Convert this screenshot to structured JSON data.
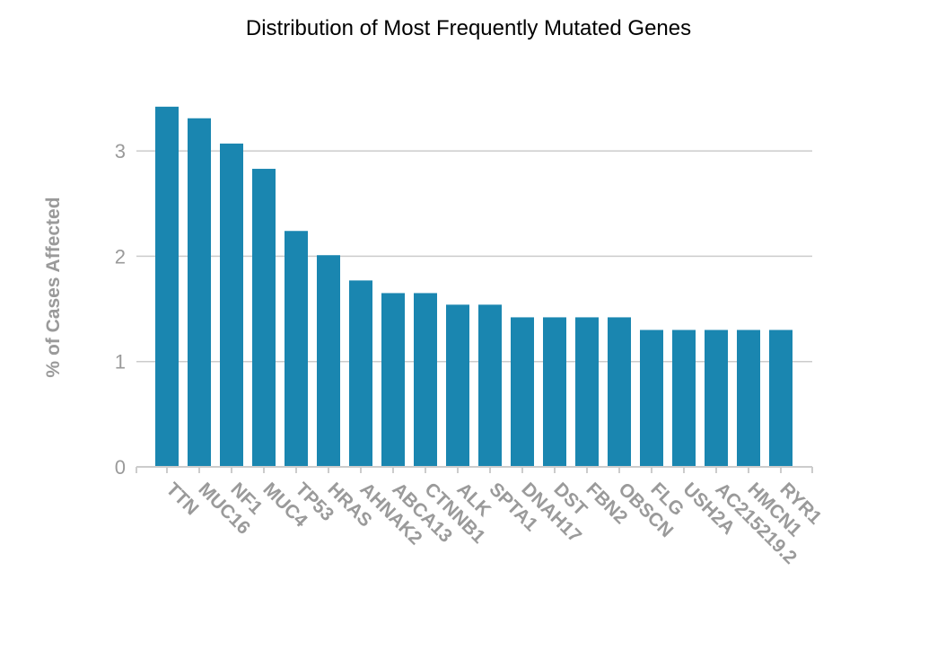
{
  "chart_data": {
    "type": "bar",
    "title": "Distribution of Most Frequently Mutated Genes",
    "xlabel": "",
    "ylabel": "% of Cases Affected",
    "ylim": [
      0,
      3.5
    ],
    "yticks": [
      0,
      1,
      2,
      3
    ],
    "grid": true,
    "bar_color": "#1a86b0",
    "categories": [
      "TTN",
      "MUC16",
      "NF1",
      "MUC4",
      "TP53",
      "HRAS",
      "AHNAK2",
      "ABCA13",
      "CTNNB1",
      "ALK",
      "SPTA1",
      "DNAH17",
      "DST",
      "FBN2",
      "OBSCN",
      "FLG",
      "USH2A",
      "AC215219.2",
      "HMCN1",
      "RYR1"
    ],
    "values": [
      3.42,
      3.31,
      3.07,
      2.83,
      2.24,
      2.01,
      1.77,
      1.65,
      1.65,
      1.54,
      1.54,
      1.42,
      1.42,
      1.42,
      1.42,
      1.3,
      1.3,
      1.3,
      1.3,
      1.3
    ]
  }
}
